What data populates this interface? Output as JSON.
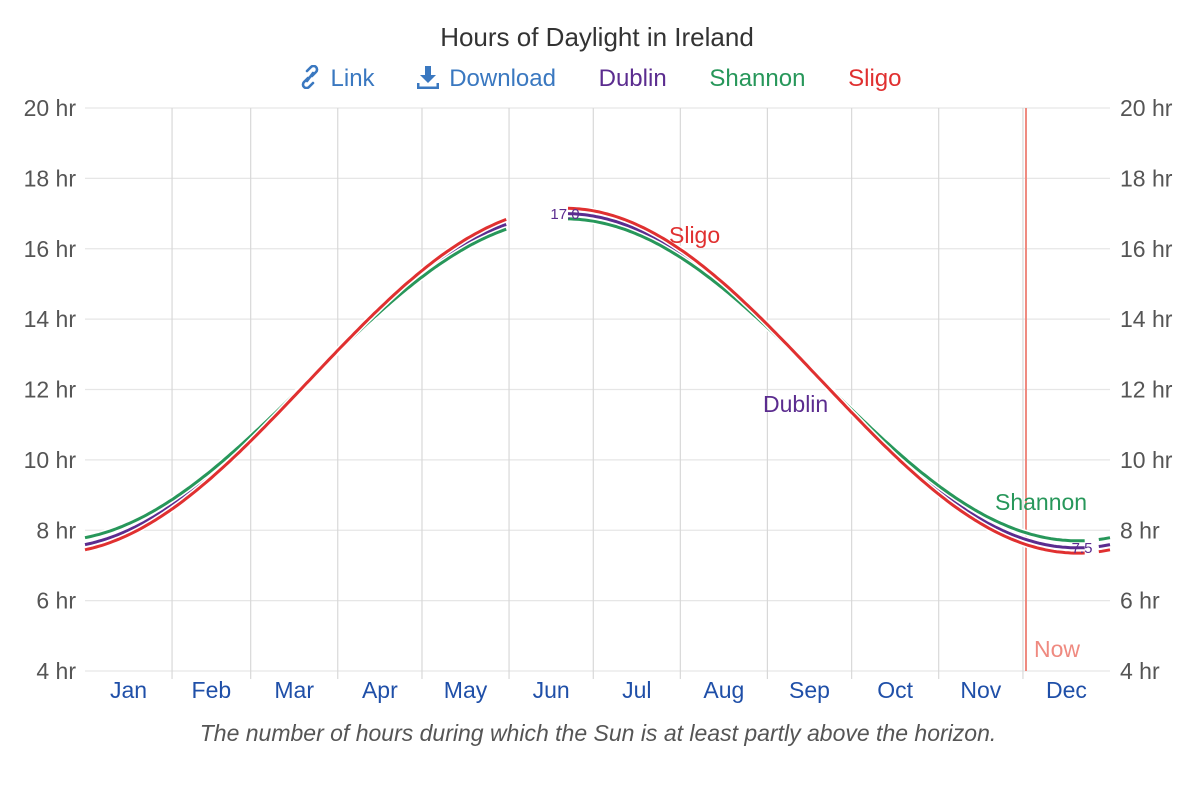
{
  "header": {
    "title": "Hours of Daylight in Ireland",
    "toolbar": {
      "link_label": "Link",
      "link_icon": "link-icon",
      "download_label": "Download",
      "download_icon": "download-icon",
      "legend": [
        {
          "name": "Dublin",
          "color": "#5b2c8f"
        },
        {
          "name": "Shannon",
          "color": "#27975a"
        },
        {
          "name": "Sligo",
          "color": "#e03030"
        }
      ]
    }
  },
  "caption": "The number of hours during which the Sun is at least partly above the horizon.",
  "annotations": {
    "max_label": "17.0",
    "min_label": "7.5",
    "now_label": "Now",
    "series_labels": {
      "Dublin": "Dublin",
      "Shannon": "Shannon",
      "Sligo": "Sligo"
    }
  },
  "colors": {
    "dublin": "#5b2c8f",
    "shannon": "#27975a",
    "sligo": "#e03030",
    "now": "#ef8a80",
    "month_label": "#1f4fa8",
    "axis_label": "#555555",
    "link": "#3a78c0"
  },
  "chart_data": {
    "type": "line",
    "title": "Hours of Daylight in Ireland",
    "subtitle": "The number of hours during which the Sun is at least partly above the horizon.",
    "xlabel": "",
    "ylabel": "",
    "x_tick_labels": [
      "Jan",
      "Feb",
      "Mar",
      "Apr",
      "May",
      "Jun",
      "Jul",
      "Aug",
      "Sep",
      "Oct",
      "Nov",
      "Dec"
    ],
    "y_tick_labels": [
      "4 hr",
      "6 hr",
      "8 hr",
      "10 hr",
      "12 hr",
      "14 hr",
      "16 hr",
      "18 hr",
      "20 hr"
    ],
    "ylim": [
      4,
      20
    ],
    "grid": true,
    "legend_position": "top",
    "x": [
      "Jan 1",
      "Feb 1",
      "Mar 1",
      "Apr 1",
      "May 1",
      "Jun 1",
      "Jun 21",
      "Jul 1",
      "Aug 1",
      "Sep 1",
      "Oct 1",
      "Nov 1",
      "Dec 1",
      "Dec 21",
      "Dec 31"
    ],
    "series": [
      {
        "name": "Dublin",
        "color": "#5b2c8f",
        "values": [
          7.6,
          8.9,
          10.7,
          12.9,
          15.0,
          16.6,
          17.0,
          16.9,
          15.5,
          13.5,
          11.4,
          9.3,
          7.9,
          7.5,
          7.6
        ]
      },
      {
        "name": "Shannon",
        "color": "#27975a",
        "values": [
          7.75,
          9.0,
          10.75,
          12.9,
          14.95,
          16.45,
          16.85,
          16.75,
          15.4,
          13.5,
          11.45,
          9.4,
          8.05,
          7.7,
          7.75
        ]
      },
      {
        "name": "Sligo",
        "color": "#e03030",
        "values": [
          7.4,
          8.8,
          10.65,
          12.95,
          15.1,
          16.75,
          17.15,
          17.05,
          15.6,
          13.55,
          11.35,
          9.2,
          7.75,
          7.35,
          7.4
        ]
      }
    ],
    "annotations": [
      {
        "text": "17.0",
        "x": "Jun 21",
        "series": "Dublin",
        "type": "max"
      },
      {
        "text": "7.5",
        "x": "Dec 21",
        "series": "Dublin",
        "type": "min"
      },
      {
        "text": "Now",
        "x": "Nov 30",
        "type": "vertical-line"
      }
    ]
  }
}
